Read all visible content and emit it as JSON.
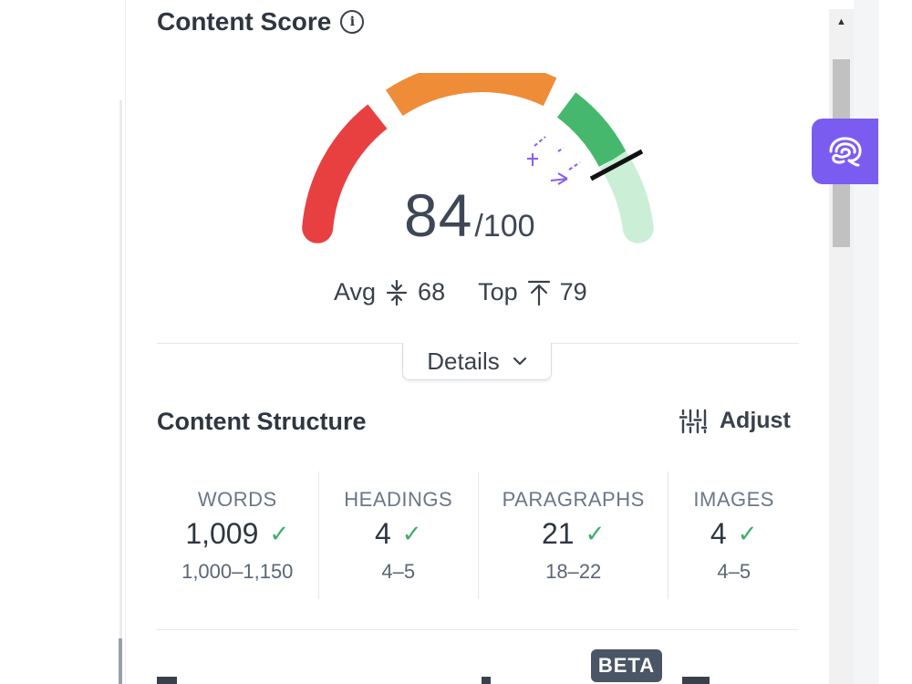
{
  "header": {
    "title": "Content Score",
    "info_icon": "info-icon"
  },
  "score": {
    "value": "84",
    "max": "/100",
    "avg_label": "Avg",
    "avg_value": "68",
    "top_label": "Top",
    "top_value": "79",
    "gauge_segments": [
      {
        "name": "low",
        "color": "#e84040"
      },
      {
        "name": "mid",
        "color": "#ef8c38"
      },
      {
        "name": "good",
        "color": "#46b86e"
      },
      {
        "name": "excellent",
        "color": "#cbeed7"
      }
    ],
    "marker_color": "#111111",
    "bench_marker_color": "#8a5cf0"
  },
  "details": {
    "label": "Details"
  },
  "structure": {
    "title": "Content Structure",
    "adjust_label": "Adjust",
    "metrics": [
      {
        "label": "WORDS",
        "value": "1,009",
        "range": "1,000–1,150"
      },
      {
        "label": "HEADINGS",
        "value": "4",
        "range": "4–5"
      },
      {
        "label": "PARAGRAPHS",
        "value": "21",
        "range": "18–22"
      },
      {
        "label": "IMAGES",
        "value": "4",
        "range": "4–5"
      }
    ]
  },
  "footer": {
    "beta_label": "BETA"
  },
  "accent_color": "#7b5cf0"
}
